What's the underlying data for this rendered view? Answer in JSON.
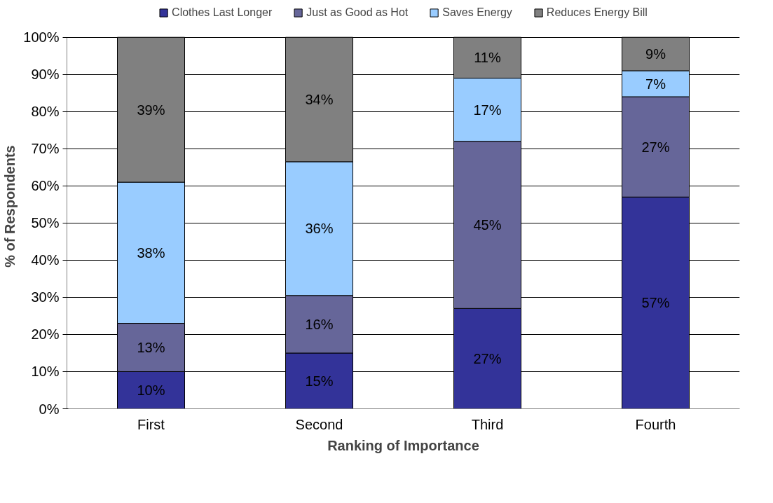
{
  "chart_data": {
    "type": "bar",
    "stacked": true,
    "xlabel": "Ranking of Importance",
    "ylabel": "% of Respondents",
    "categories": [
      "First",
      "Second",
      "Third",
      "Fourth"
    ],
    "series": [
      {
        "name": "Clothes Last Longer",
        "color": "#333399",
        "values": [
          10,
          15,
          27,
          57
        ],
        "value_labels": [
          "10%",
          "15%",
          "27%",
          "57%"
        ]
      },
      {
        "name": "Just as Good as Hot",
        "color": "#666699",
        "values": [
          13,
          15.5,
          45,
          27
        ],
        "value_labels": [
          "13%",
          "16%",
          "45%",
          "27%"
        ]
      },
      {
        "name": "Saves Energy",
        "color": "#99ccff",
        "values": [
          38,
          36,
          17,
          7
        ],
        "value_labels": [
          "38%",
          "36%",
          "17%",
          "7%"
        ]
      },
      {
        "name": "Reduces Energy Bill",
        "color": "#808080",
        "values": [
          39,
          33.5,
          11,
          9
        ],
        "value_labels": [
          "39%",
          "34%",
          "11%",
          "9%"
        ]
      }
    ],
    "ylim": [
      0,
      100
    ],
    "yticks": [
      {
        "value": 0,
        "label": "0%"
      },
      {
        "value": 10,
        "label": "10%"
      },
      {
        "value": 20,
        "label": "20%"
      },
      {
        "value": 30,
        "label": "30%"
      },
      {
        "value": 40,
        "label": "40%"
      },
      {
        "value": 50,
        "label": "50%"
      },
      {
        "value": 60,
        "label": "60%"
      },
      {
        "value": 70,
        "label": "70%"
      },
      {
        "value": 80,
        "label": "80%"
      },
      {
        "value": 90,
        "label": "90%"
      },
      {
        "value": 100,
        "label": "100%"
      }
    ],
    "grid": "y",
    "legend": "top"
  }
}
